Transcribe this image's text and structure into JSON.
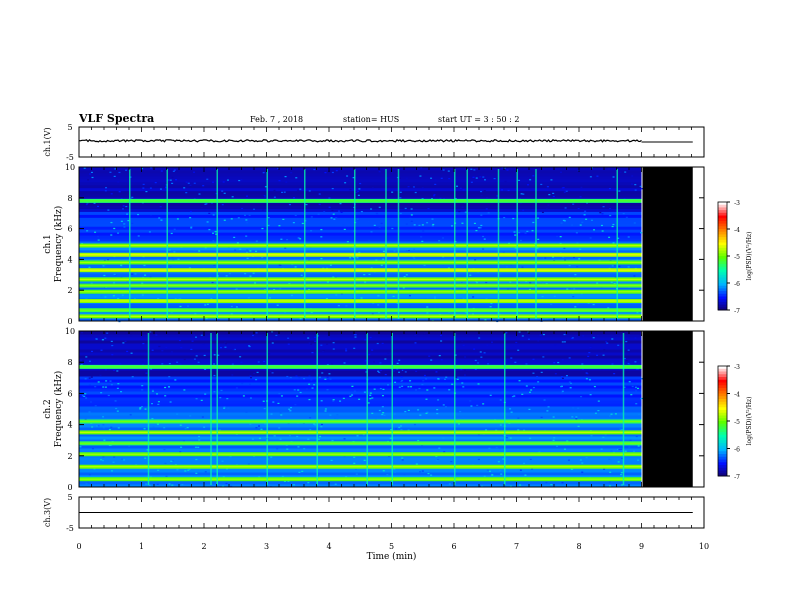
{
  "header": {
    "title": "VLF Spectra",
    "date": "Feb. 7 , 2018",
    "station": "station= HUS",
    "start_ut": "start UT =  3 : 50 : 2"
  },
  "colors": {
    "nodata": "#000000",
    "colormap": [
      "#140066",
      "#0010ff",
      "#00b4ff",
      "#00ffb0",
      "#5cff00",
      "#ffff00",
      "#ff8000",
      "#ff0000",
      "#ffffff"
    ]
  },
  "chart_data": [
    {
      "type": "line",
      "name": "ch1-waveform",
      "ylabel": "ch.1(V)",
      "xlim": [
        0,
        10
      ],
      "ylim": [
        -5,
        5
      ],
      "yticks": [
        "5",
        "-5"
      ],
      "data_end_min": 9.0,
      "baseline": 0.4,
      "note_after_data": 0.0
    },
    {
      "type": "heatmap",
      "name": "ch1-spectrogram",
      "ylabel": "ch.1",
      "ylabel2": "Frequency (kHz)",
      "xlim": [
        0,
        10
      ],
      "ylim": [
        0,
        10
      ],
      "yticks": [
        "0",
        "2",
        "4",
        "6",
        "8",
        "10"
      ],
      "data_end_min": 9.0,
      "colorbar": {
        "label": "log(PSD)(V²/Hz)",
        "ticks": [
          "-3",
          "-4",
          "-5",
          "-6",
          "-7"
        ],
        "range": [
          -7,
          -3
        ]
      },
      "bands_khz": [
        {
          "f": 0.3,
          "level": -4.6
        },
        {
          "f": 0.7,
          "level": -4.9
        },
        {
          "f": 1.3,
          "level": -4.5
        },
        {
          "f": 1.9,
          "level": -4.7
        },
        {
          "f": 2.3,
          "level": -4.8
        },
        {
          "f": 2.7,
          "level": -4.6
        },
        {
          "f": 3.3,
          "level": -4.4
        },
        {
          "f": 3.8,
          "level": -4.7
        },
        {
          "f": 4.3,
          "level": -4.4
        },
        {
          "f": 4.9,
          "level": -4.6
        },
        {
          "f": 7.8,
          "level": -5.0
        }
      ],
      "spikes_min": [
        0.8,
        1.4,
        2.2,
        3.0,
        3.6,
        4.4,
        4.9,
        5.1,
        6.0,
        6.2,
        6.7,
        7.0,
        7.3,
        8.6
      ]
    },
    {
      "type": "heatmap",
      "name": "ch2-spectrogram",
      "ylabel": "ch.2",
      "ylabel2": "Frequency (kHz)",
      "xlim": [
        0,
        10
      ],
      "ylim": [
        0,
        10
      ],
      "yticks": [
        "0",
        "2",
        "4",
        "6",
        "8",
        "10"
      ],
      "data_end_min": 9.0,
      "colorbar": {
        "label": "log(PSD)(V²/Hz)",
        "ticks": [
          "-3",
          "-4",
          "-5",
          "-6",
          "-7"
        ],
        "range": [
          -7,
          -3
        ]
      },
      "bands_khz": [
        {
          "f": 0.5,
          "level": -4.7
        },
        {
          "f": 1.3,
          "level": -4.6
        },
        {
          "f": 2.1,
          "level": -4.7
        },
        {
          "f": 2.8,
          "level": -4.9
        },
        {
          "f": 3.5,
          "level": -4.6
        },
        {
          "f": 4.2,
          "level": -4.9
        },
        {
          "f": 7.7,
          "level": -5.0
        }
      ],
      "spikes_min": [
        1.1,
        2.1,
        2.2,
        3.0,
        3.8,
        4.6,
        5.0,
        6.0,
        6.8,
        8.7
      ]
    },
    {
      "type": "line",
      "name": "ch3-waveform",
      "ylabel": "ch.3(V)",
      "xlim": [
        0,
        10
      ],
      "ylim": [
        -5,
        5
      ],
      "yticks": [
        "5",
        "-5"
      ],
      "data_end_min": 10.0,
      "baseline": 0.0
    }
  ],
  "xaxis": {
    "label": "Time (min)",
    "ticks": [
      "0",
      "1",
      "2",
      "3",
      "4",
      "5",
      "6",
      "7",
      "8",
      "9",
      "10"
    ]
  }
}
